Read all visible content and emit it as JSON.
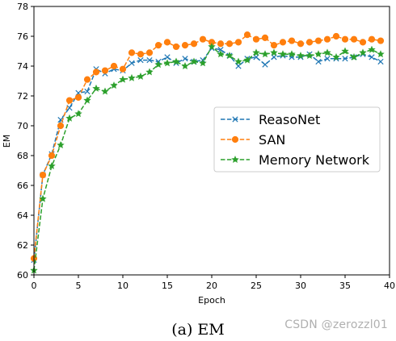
{
  "chart_data": {
    "type": "line",
    "xlabel": "Epoch",
    "ylabel": "EM",
    "xlim": [
      0,
      40
    ],
    "ylim": [
      60,
      78
    ],
    "x_ticks": [
      0,
      5,
      10,
      15,
      20,
      25,
      30,
      35,
      40
    ],
    "y_ticks": [
      60,
      62,
      64,
      66,
      68,
      70,
      72,
      74,
      76,
      78
    ],
    "grid": false,
    "legend_position": "center-right",
    "x": [
      0,
      1,
      2,
      3,
      4,
      5,
      6,
      7,
      8,
      9,
      10,
      11,
      12,
      13,
      14,
      15,
      16,
      17,
      18,
      19,
      20,
      21,
      22,
      23,
      24,
      25,
      26,
      27,
      28,
      29,
      30,
      31,
      32,
      33,
      34,
      35,
      36,
      37,
      38,
      39
    ],
    "series": [
      {
        "name": "ReasoNet",
        "color": "#1f77b4",
        "marker": "x",
        "values": [
          61.0,
          66.7,
          68.1,
          70.4,
          71.2,
          72.2,
          72.3,
          73.8,
          73.5,
          73.8,
          73.7,
          74.2,
          74.4,
          74.4,
          74.3,
          74.6,
          74.2,
          74.5,
          74.3,
          74.4,
          75.2,
          75.1,
          74.7,
          74.0,
          74.5,
          74.6,
          74.1,
          74.6,
          74.7,
          74.6,
          74.6,
          74.8,
          74.3,
          74.5,
          74.5,
          74.5,
          74.6,
          74.8,
          74.6,
          74.3
        ]
      },
      {
        "name": "SAN",
        "color": "#ff7f0e",
        "marker": "o",
        "values": [
          61.1,
          66.7,
          68.0,
          70.0,
          71.7,
          71.9,
          73.1,
          73.6,
          73.7,
          74.0,
          73.8,
          74.9,
          74.8,
          74.9,
          75.4,
          75.6,
          75.3,
          75.4,
          75.5,
          75.8,
          75.6,
          75.5,
          75.5,
          75.6,
          76.1,
          75.8,
          75.9,
          75.4,
          75.6,
          75.7,
          75.5,
          75.6,
          75.7,
          75.8,
          76.0,
          75.8,
          75.8,
          75.6,
          75.8,
          75.7
        ]
      },
      {
        "name": "Memory Network",
        "color": "#2ca02c",
        "marker": "*",
        "values": [
          60.3,
          65.1,
          67.3,
          68.7,
          70.5,
          70.8,
          71.7,
          72.5,
          72.3,
          72.7,
          73.1,
          73.2,
          73.3,
          73.6,
          74.1,
          74.2,
          74.3,
          74.0,
          74.3,
          74.2,
          75.3,
          74.8,
          74.7,
          74.3,
          74.4,
          74.9,
          74.8,
          74.9,
          74.8,
          74.8,
          74.7,
          74.7,
          74.8,
          74.9,
          74.6,
          75.0,
          74.6,
          74.9,
          75.1,
          74.8
        ]
      }
    ]
  },
  "caption": "(a)  EM",
  "watermark": "CSDN @zerozzl01"
}
